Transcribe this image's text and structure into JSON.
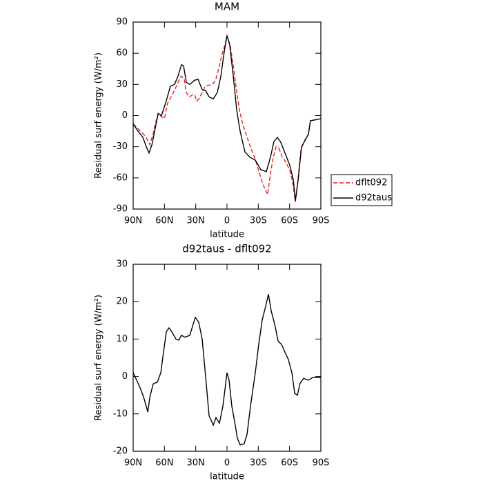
{
  "chart_data": [
    {
      "type": "line",
      "title": "MAM",
      "x_label": "latitude",
      "y_label": "Residual surf energy (W/m²)",
      "xlim": [
        90,
        -90
      ],
      "xticks": [
        {
          "value": 90,
          "label": "90N"
        },
        {
          "value": 60,
          "label": "60N"
        },
        {
          "value": 30,
          "label": "30N"
        },
        0,
        {
          "value": -30,
          "label": "30S"
        },
        {
          "value": -60,
          "label": "60S"
        },
        {
          "value": -90,
          "label": "90S"
        }
      ],
      "ylim": [
        -90,
        90
      ],
      "yticks": [
        -90,
        -60,
        -30,
        0,
        30,
        60,
        90
      ],
      "legend": "outside-right",
      "series": [
        {
          "name": "dflt092",
          "color": "#e8201c",
          "dash": true,
          "x": [
            90,
            85,
            80,
            77,
            74,
            71,
            68,
            66,
            63,
            60,
            57,
            53,
            50,
            47,
            44,
            41,
            39,
            36,
            33,
            31,
            29,
            27,
            24,
            21,
            18,
            14,
            11,
            8,
            5,
            2,
            0,
            -3,
            -6,
            -9,
            -12,
            -15,
            -19,
            -23,
            -27,
            -31,
            -34,
            -37,
            -39,
            -41,
            -44,
            -47,
            -50,
            -53,
            -56,
            -60,
            -63,
            -65.6,
            -68,
            -71,
            -75,
            -78,
            -80,
            -85,
            -90
          ],
          "values": [
            -8,
            -13,
            -18,
            -22,
            -28,
            -18,
            -5,
            2,
            -1,
            -3,
            12,
            19,
            25,
            32,
            38,
            35,
            22,
            18,
            20,
            20,
            14,
            16,
            22,
            28,
            29,
            30,
            34,
            45,
            58,
            68,
            77,
            68,
            48,
            25,
            5,
            -8,
            -20,
            -32,
            -42,
            -55,
            -65,
            -72,
            -76,
            -60,
            -42,
            -30,
            -32,
            -40,
            -44,
            -52,
            -64,
            -83,
            -62,
            -32,
            -23,
            -18,
            -5,
            -4,
            -3
          ]
        },
        {
          "name": "d92taus",
          "color": "#000000",
          "dash": false,
          "x": [
            90,
            85.4,
            80.7,
            77.4,
            74.8,
            72,
            68.8,
            66,
            62.9,
            58.9,
            54.3,
            50.3,
            47,
            43.7,
            41.7,
            39,
            35.7,
            31.1,
            27.8,
            23.8,
            20.5,
            17.2,
            13.2,
            9.3,
            5.9,
            2.6,
            0,
            -2.6,
            -6,
            -9.3,
            -12.6,
            -17.2,
            -21.8,
            -27.1,
            -32.4,
            -37.7,
            -41.7,
            -45,
            -48.4,
            -51.7,
            -55.6,
            -60.3,
            -63.6,
            -65.6,
            -68.2,
            -71.5,
            -74.8,
            -78.1,
            -80,
            -85.4,
            -90
          ],
          "values": [
            -8,
            -15,
            -21,
            -30,
            -36,
            -28,
            -12,
            2,
            0,
            12,
            28,
            30,
            38,
            49,
            48,
            32,
            30,
            34,
            35,
            25,
            24,
            18,
            16,
            22,
            38,
            62,
            77,
            68,
            38,
            5,
            -15,
            -35,
            -40,
            -43,
            -52,
            -54,
            -40,
            -25,
            -21,
            -26,
            -36,
            -48,
            -62,
            -82,
            -62,
            -30,
            -24,
            -18,
            -5,
            -4,
            -3
          ]
        }
      ]
    },
    {
      "type": "line",
      "title": "d92taus - dflt092",
      "x_label": "latitude",
      "y_label": "Residual surf energy (W/m²)",
      "xlim": [
        90,
        -90
      ],
      "xticks": [
        {
          "value": 90,
          "label": "90N"
        },
        {
          "value": 60,
          "label": "60N"
        },
        {
          "value": 30,
          "label": "30N"
        },
        0,
        {
          "value": -30,
          "label": "30S"
        },
        {
          "value": -60,
          "label": "60S"
        },
        {
          "value": -90,
          "label": "90S"
        }
      ],
      "ylim": [
        -20,
        30
      ],
      "yticks": [
        -20,
        -10,
        0,
        10,
        20,
        30
      ],
      "color": "#000000",
      "x": [
        90,
        86.7,
        83.4,
        80,
        77.4,
        76,
        74,
        70.8,
        66.8,
        63.5,
        60.9,
        58.2,
        55.6,
        53,
        49,
        46.3,
        43.7,
        40.4,
        35.7,
        32.4,
        30.4,
        27.1,
        23.8,
        20.5,
        17.2,
        13.2,
        10.6,
        7.3,
        4,
        2,
        0,
        -2,
        -4.6,
        -7.3,
        -9.9,
        -12.6,
        -16.5,
        -19.2,
        -22.5,
        -27.1,
        -30.4,
        -33.7,
        -37.7,
        -39.7,
        -42.4,
        -45.7,
        -49,
        -52.4,
        -55.6,
        -58.9,
        -62.2,
        -64.9,
        -67.5,
        -70.1,
        -73.5,
        -78,
        -82,
        -90
      ],
      "values": [
        1,
        -1,
        -3,
        -5.5,
        -8,
        -9.5,
        -5.5,
        -2,
        -1.5,
        1,
        6.5,
        12,
        13,
        12,
        10,
        9.7,
        11,
        10.5,
        11,
        14,
        15.8,
        14.5,
        10,
        0,
        -10.5,
        -13,
        -11,
        -12.5,
        -8,
        -3.5,
        1,
        -1,
        -8,
        -12,
        -16.5,
        -18.3,
        -18,
        -15.5,
        -8,
        1,
        8.5,
        15,
        19.5,
        22,
        17.5,
        14,
        9.5,
        8.5,
        6.5,
        4.5,
        1,
        -4.5,
        -5,
        -1.8,
        -0.5,
        -1,
        -0.3,
        -0.3
      ]
    }
  ]
}
